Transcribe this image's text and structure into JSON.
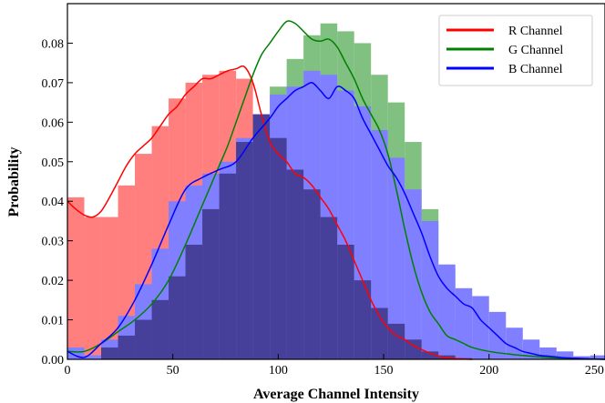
{
  "chart_data": {
    "type": "bar",
    "xlabel": "Average Channel  Intensity",
    "ylabel": "Probability",
    "xlim": [
      0,
      255
    ],
    "ylim": [
      0,
      0.09
    ],
    "grid": false,
    "legend_position": "top-right",
    "bin_width": 8,
    "bin_starts": [
      0,
      8,
      16,
      24,
      32,
      40,
      48,
      56,
      64,
      72,
      80,
      88,
      96,
      104,
      112,
      120,
      128,
      136,
      144,
      152,
      160,
      168,
      176,
      184,
      192,
      200,
      208,
      216,
      224,
      232,
      240,
      248
    ],
    "x_ticks": [
      0,
      50,
      100,
      150,
      200,
      250
    ],
    "y_ticks": [
      0.0,
      0.01,
      0.02,
      0.03,
      0.04,
      0.05,
      0.06,
      0.07,
      0.08
    ],
    "y_tick_labels": [
      "0.00",
      "0.01",
      "0.02",
      "0.03",
      "0.04",
      "0.05",
      "0.06",
      "0.07",
      "0.08"
    ],
    "series": [
      {
        "name": "R Channel",
        "color": "#ff0000",
        "fill": "#ff7f7f",
        "hist": [
          0.041,
          0.036,
          0.036,
          0.044,
          0.052,
          0.059,
          0.066,
          0.07,
          0.072,
          0.073,
          0.071,
          0.062,
          0.056,
          0.048,
          0.043,
          0.036,
          0.029,
          0.02,
          0.013,
          0.009,
          0.005,
          0.002,
          0.001,
          0.0003,
          0,
          0,
          0,
          0,
          0,
          0,
          0,
          0
        ],
        "kde_x": [
          0,
          4,
          8,
          12,
          16,
          20,
          24,
          28,
          32,
          36,
          40,
          44,
          48,
          52,
          56,
          60,
          64,
          68,
          72,
          76,
          80,
          84,
          88,
          92,
          96,
          100,
          104,
          108,
          112,
          116,
          120,
          124,
          128,
          132,
          136,
          140,
          144,
          148,
          152,
          156,
          160,
          164,
          168,
          172,
          176,
          180,
          184,
          188,
          192
        ],
        "kde_y": [
          0.04,
          0.038,
          0.0365,
          0.036,
          0.0375,
          0.041,
          0.045,
          0.049,
          0.052,
          0.054,
          0.056,
          0.059,
          0.062,
          0.064,
          0.067,
          0.069,
          0.071,
          0.071,
          0.072,
          0.073,
          0.0735,
          0.074,
          0.07,
          0.062,
          0.055,
          0.052,
          0.05,
          0.047,
          0.046,
          0.044,
          0.041,
          0.038,
          0.034,
          0.03,
          0.025,
          0.02,
          0.015,
          0.011,
          0.008,
          0.006,
          0.005,
          0.0035,
          0.0025,
          0.0015,
          0.0008,
          0.0004,
          0.0002,
          0.0001,
          0
        ]
      },
      {
        "name": "G Channel",
        "color": "#008000",
        "fill": "#80c080",
        "hist": [
          0,
          0,
          0.003,
          0.006,
          0.01,
          0.015,
          0.021,
          0.029,
          0.038,
          0.047,
          0.055,
          0.062,
          0.069,
          0.076,
          0.082,
          0.085,
          0.083,
          0.08,
          0.072,
          0.065,
          0.055,
          0.038,
          0.023,
          0.01,
          0.004,
          0.002,
          0.001,
          0,
          0,
          0,
          0,
          0
        ],
        "kde_x": [
          0,
          8,
          16,
          24,
          32,
          40,
          48,
          56,
          64,
          72,
          76,
          80,
          84,
          88,
          92,
          96,
          100,
          104,
          108,
          112,
          116,
          120,
          124,
          128,
          132,
          136,
          140,
          144,
          148,
          152,
          156,
          160,
          164,
          168,
          172,
          176,
          180,
          184,
          188,
          192,
          200,
          210,
          220,
          230,
          240,
          250,
          255
        ],
        "kde_y": [
          0.002,
          0.002,
          0.004,
          0.007,
          0.01,
          0.014,
          0.02,
          0.029,
          0.039,
          0.049,
          0.054,
          0.06,
          0.066,
          0.072,
          0.077,
          0.08,
          0.083,
          0.0855,
          0.085,
          0.083,
          0.081,
          0.0805,
          0.081,
          0.079,
          0.075,
          0.071,
          0.066,
          0.062,
          0.058,
          0.052,
          0.043,
          0.033,
          0.024,
          0.017,
          0.012,
          0.009,
          0.006,
          0.005,
          0.004,
          0.003,
          0.002,
          0.0013,
          0.0008,
          0.0004,
          0.0002,
          0.0001,
          0
        ]
      },
      {
        "name": "B Channel",
        "color": "#0000ff",
        "fill": "#7f7fff",
        "hist": [
          0.003,
          0.001,
          0.005,
          0.011,
          0.019,
          0.028,
          0.04,
          0.044,
          0.047,
          0.05,
          0.056,
          0.062,
          0.067,
          0.069,
          0.073,
          0.072,
          0.068,
          0.064,
          0.058,
          0.051,
          0.043,
          0.035,
          0.024,
          0.018,
          0.016,
          0.012,
          0.008,
          0.005,
          0.003,
          0.002,
          0.0008,
          0.001
        ],
        "kde_x": [
          0,
          8,
          16,
          24,
          32,
          40,
          48,
          56,
          64,
          72,
          80,
          88,
          96,
          100,
          104,
          108,
          112,
          116,
          120,
          124,
          128,
          132,
          136,
          140,
          144,
          148,
          152,
          156,
          160,
          164,
          168,
          172,
          176,
          180,
          184,
          188,
          192,
          196,
          200,
          204,
          208,
          212,
          216,
          220,
          224,
          228,
          232,
          236,
          240,
          244,
          248,
          255
        ],
        "kde_y": [
          0.002,
          0.0005,
          0.004,
          0.008,
          0.015,
          0.024,
          0.034,
          0.043,
          0.046,
          0.048,
          0.05,
          0.056,
          0.061,
          0.064,
          0.066,
          0.068,
          0.069,
          0.07,
          0.068,
          0.066,
          0.069,
          0.068,
          0.066,
          0.061,
          0.057,
          0.053,
          0.049,
          0.046,
          0.042,
          0.037,
          0.032,
          0.026,
          0.021,
          0.018,
          0.016,
          0.014,
          0.013,
          0.01,
          0.008,
          0.006,
          0.004,
          0.003,
          0.002,
          0.0015,
          0.001,
          0.0008,
          0.0006,
          0.0004,
          0.0003,
          0.0002,
          0.0001,
          0
        ]
      }
    ],
    "overlap_fill": "#47409a"
  }
}
